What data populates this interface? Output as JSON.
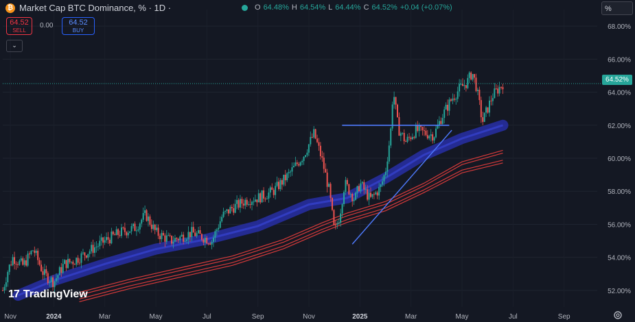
{
  "header": {
    "title": "Market Cap BTC Dominance, % · 1D ·",
    "btc_icon": "bitcoin-icon",
    "ohlc": {
      "o_label": "O",
      "o": "64.48%",
      "h_label": "H",
      "h": "64.54%",
      "l_label": "L",
      "l": "64.44%",
      "c_label": "C",
      "c": "64.52%",
      "change": "+0.04 (+0.07%)"
    },
    "sell_value": "64.52",
    "sell_label": "SELL",
    "spread": "0.00",
    "buy_value": "64.52",
    "buy_label": "BUY",
    "collapse_icon": "chevron-down-icon",
    "scale_mode": "%"
  },
  "last_price_label": "64.52%",
  "branding": "TradingView",
  "colors": {
    "up": "#26a69a",
    "down": "#ef5350",
    "ma_band": "#2a31b8",
    "red_bands": "#d63a3a",
    "trendline": "#4f7bff",
    "background": "#141823"
  },
  "chart_data": {
    "type": "line",
    "title": "Market Cap BTC Dominance, %",
    "xlabel": "",
    "ylabel": "",
    "ylim": [
      51,
      69
    ],
    "y_ticks": [
      52,
      54,
      56,
      58,
      60,
      62,
      64,
      66,
      68
    ],
    "y_tick_labels": [
      "52.00%",
      "54.00%",
      "56.00%",
      "58.00%",
      "60.00%",
      "62.00%",
      "64.00%",
      "66.00%",
      "68.00%"
    ],
    "x_tick_labels": [
      "Nov",
      "2024",
      "Mar",
      "May",
      "Jul",
      "Sep",
      "Nov",
      "2025",
      "Mar",
      "May",
      "Jul",
      "Sep"
    ],
    "x_ticks": [
      0.3,
      2,
      4,
      6,
      8,
      10,
      12,
      14,
      16,
      18,
      20,
      22
    ],
    "xlim": [
      0,
      23.3
    ],
    "price_path": {
      "x": [
        0,
        0.2,
        0.4,
        0.8,
        1.2,
        1.6,
        2,
        2.4,
        2.8,
        3.2,
        3.6,
        4,
        4.6,
        5.2,
        5.6,
        6,
        6.6,
        7.4,
        8.2,
        8.6,
        9,
        9.6,
        10,
        10.6,
        11.2,
        11.8,
        12.2,
        12.5,
        12.8,
        13,
        13.2,
        13.4,
        13.8,
        14,
        14.4,
        14.8,
        15,
        15.2,
        15.3,
        15.5,
        15.8,
        16.2,
        16.6,
        16.9,
        17.2,
        17.6,
        17.9,
        18.2,
        18.4,
        18.55,
        18.8,
        19.2,
        19.6
      ],
      "y": [
        52,
        53.2,
        54,
        53.5,
        54.5,
        53,
        52.5,
        53.6,
        53.8,
        54.2,
        54.6,
        55,
        55.5,
        55.8,
        56.6,
        55.5,
        55,
        55.5,
        55,
        56.5,
        57,
        57.5,
        57.6,
        58,
        59,
        60.2,
        61.5,
        60,
        58,
        55.5,
        56.5,
        58.5,
        57.5,
        58.5,
        57.5,
        58.2,
        59.2,
        61.5,
        64.2,
        61.8,
        61,
        61.7,
        61.5,
        61.4,
        62.5,
        63.6,
        64.2,
        64.6,
        65.2,
        64.4,
        62.2,
        63.8,
        64.52
      ]
    },
    "series": [
      {
        "values": {
          "x": [
            0.6,
            2,
            4,
            6,
            8,
            10,
            12,
            13.5,
            15,
            16.5,
            18,
            19.6
          ],
          "y": [
            51.7,
            52.6,
            53.6,
            54.5,
            55.1,
            55.9,
            57.2,
            57.6,
            58.8,
            60.2,
            61.2,
            62.0
          ]
        }
      },
      {
        "values": {
          "x": [
            3,
            5,
            7,
            9,
            11,
            12.5,
            13.5,
            15,
            16.5,
            18,
            19.6
          ],
          "y": [
            51.8,
            52.6,
            53.3,
            54.0,
            55.0,
            56.0,
            56.6,
            57.3,
            58.4,
            59.7,
            60.4
          ]
        }
      },
      {
        "values": {
          "x": [
            3,
            5,
            7,
            9,
            11,
            12.5,
            13.5,
            15,
            16.5,
            18,
            19.6
          ],
          "y": [
            51.4,
            52.2,
            52.9,
            53.6,
            54.6,
            55.6,
            56.2,
            56.9,
            58.0,
            59.2,
            59.8
          ]
        }
      }
    ],
    "annotations": [
      {
        "type": "horizontal_line",
        "x_start": 13.3,
        "x_end": 17.5,
        "y": 62.0
      },
      {
        "type": "trendline",
        "x_start": 13.7,
        "y_start": 54.8,
        "x_end": 17.6,
        "y_end": 61.7
      },
      {
        "type": "dotted_price_line",
        "y": 64.52
      }
    ],
    "grid": true,
    "legend": "top-left"
  }
}
